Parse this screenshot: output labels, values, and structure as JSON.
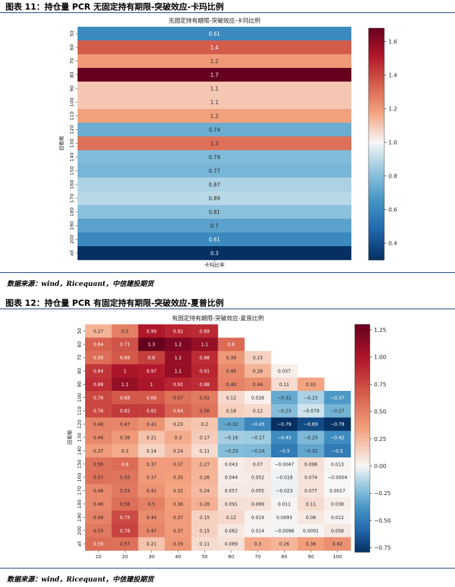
{
  "figure1": {
    "caption": "图表 11：持仓量 PCR 无固定持有期限-突破效应-卡玛比例",
    "source": "数据来源：wind，Ricequant，中信建投期货",
    "chart_data": {
      "type": "heatmap",
      "title": "无固定持有期限-突破效应-卡玛比例",
      "xlabel": "卡玛比率",
      "ylabel": "回看期",
      "rows": [
        "50",
        "60",
        "70",
        "80",
        "90",
        "100",
        "110",
        "120",
        "130",
        "140",
        "150",
        "160",
        "170",
        "180",
        "190",
        "200",
        "all"
      ],
      "values": [
        0.61,
        1.4,
        1.2,
        1.7,
        1.1,
        1.1,
        1.2,
        0.74,
        1.3,
        0.79,
        0.77,
        0.87,
        0.89,
        0.81,
        0.7,
        0.61,
        0.3
      ],
      "color_values": [
        0.61,
        1.35,
        1.2,
        1.68,
        1.1,
        1.1,
        1.18,
        0.74,
        1.3,
        0.79,
        0.77,
        0.87,
        0.89,
        0.81,
        0.7,
        0.61,
        0.3
      ],
      "vmin": 0.3,
      "vmax": 1.68,
      "vcenter": 1.0,
      "colorbar_ticks": [
        1.6,
        1.4,
        1.2,
        1.0,
        0.8,
        0.6,
        0.4
      ],
      "colorbar_tick_labels": [
        "1.6",
        "1.4",
        "1.2",
        "1.0",
        "0.8",
        "0.6",
        "0.4"
      ]
    }
  },
  "figure2": {
    "caption": "图表 12：持仓量 PCR 有固定持有期限-突破效应-夏普比例",
    "source": "数据来源：wind，Ricequant，中信建投期货",
    "chart_data": {
      "type": "heatmap",
      "title": "有固定持有期限-突破效应-夏普比例",
      "ylabel": "回看期",
      "rows": [
        "50",
        "60",
        "70",
        "80",
        "90",
        "100",
        "110",
        "120",
        "130",
        "140",
        "150",
        "160",
        "170",
        "180",
        "190",
        "200",
        "all"
      ],
      "columns": [
        "10",
        "20",
        "30",
        "40",
        "50",
        "60",
        "70",
        "80",
        "90",
        "100"
      ],
      "cells": [
        [
          "0.27",
          "0.5",
          "0.99",
          "0.92",
          "0.89",
          "",
          "",
          "",
          "",
          ""
        ],
        [
          "0.64",
          "0.71",
          "1.3",
          "1.2",
          "1.1",
          "0.6",
          "",
          "",
          "",
          ""
        ],
        [
          "0.59",
          "0.68",
          "0.8",
          "1.1",
          "0.88",
          "0.39",
          "0.15",
          "",
          "",
          ""
        ],
        [
          "0.84",
          "1",
          "0.97",
          "1.1",
          "0.91",
          "0.46",
          "0.26",
          "0.037",
          "",
          ""
        ],
        [
          "0.88",
          "1.1",
          "1",
          "0.92",
          "0.88",
          "0.49",
          "0.44",
          "0.11",
          "0.33",
          ""
        ],
        [
          "0.76",
          "0.68",
          "0.68",
          "0.57",
          "0.52",
          "0.12",
          "0.028",
          "-0.31",
          "-0.15",
          "-0.37"
        ],
        [
          "0.76",
          "0.82",
          "0.81",
          "0.64",
          "0.56",
          "0.16",
          "0.12",
          "-0.23",
          "-0.079",
          "-0.27"
        ],
        [
          "0.48",
          "0.47",
          "0.41",
          "0.23",
          "0.2",
          "-0.32",
          "-0.45",
          "-0.79",
          "-0.69",
          "-0.78"
        ],
        [
          "0.46",
          "0.38",
          "0.21",
          "0.3",
          "0.17",
          "-0.16",
          "-0.17",
          "-0.43",
          "-0.25",
          "-0.42"
        ],
        [
          "0.37",
          "0.3",
          "0.14",
          "0.24",
          "0.11",
          "-0.23",
          "-0.24",
          "-0.5",
          "-0.32",
          "-0.5"
        ],
        [
          "0.56",
          "0.6",
          "0.37",
          "0.37",
          "0.27",
          "0.043",
          "0.07",
          "-0.0047",
          "0.096",
          "0.013"
        ],
        [
          "0.57",
          "0.55",
          "0.37",
          "0.35",
          "0.26",
          "0.044",
          "0.052",
          "-0.018",
          "0.074",
          "-0.0004"
        ],
        [
          "0.46",
          "0.53",
          "0.41",
          "0.32",
          "0.24",
          "0.057",
          "0.055",
          "-0.023",
          "0.077",
          "0.0017"
        ],
        [
          "0.46",
          "0.58",
          "0.5",
          "0.36",
          "0.28",
          "0.091",
          "0.089",
          "0.011",
          "0.11",
          "0.038"
        ],
        [
          "0.49",
          "0.75",
          "0.44",
          "0.37",
          "0.15",
          "0.12",
          "0.019",
          "0.0093",
          "0.06",
          "0.012"
        ],
        [
          "0.53",
          "0.78",
          "0.47",
          "0.37",
          "0.15",
          "0.062",
          "0.014",
          "-0.0096",
          "0.0091",
          "0.058"
        ],
        [
          "0.59",
          "0.57",
          "0.21",
          "0.39",
          "0.11",
          "0.089",
          "0.3",
          "0.26",
          "0.36",
          "0.42"
        ]
      ],
      "vmin": -0.79,
      "vmax": 1.3,
      "vcenter": 0,
      "colorbar_ticks": [
        1.25,
        1.0,
        0.75,
        0.5,
        0.25,
        0,
        -0.25,
        -0.5,
        -0.75
      ],
      "colorbar_tick_labels": [
        "1.25",
        "1.00",
        "0.75",
        "0.50",
        "0.25",
        "0.00",
        "−0.25",
        "−0.50",
        "−0.75"
      ]
    }
  }
}
